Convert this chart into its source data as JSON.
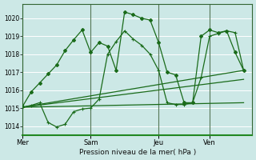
{
  "background_color": "#cce8e6",
  "grid_color": "#b8d8d6",
  "line_color": "#1a6b1a",
  "marker_color": "#1a6b1a",
  "xlabel": "Pression niveau de la mer( hPa )",
  "ylim": [
    1013.5,
    1020.8
  ],
  "yticks": [
    1014,
    1015,
    1016,
    1017,
    1018,
    1019,
    1020
  ],
  "day_labels": [
    "Mer",
    "Sam",
    "Jeu",
    "Ven"
  ],
  "day_positions": [
    0,
    8,
    16,
    22
  ],
  "xlim": [
    0,
    27
  ],
  "series1_x": [
    0,
    1,
    2,
    3,
    4,
    5,
    6,
    7,
    8,
    9,
    10,
    11,
    12,
    13,
    14,
    15,
    16,
    17,
    18,
    19,
    20,
    21,
    22,
    23,
    24,
    25,
    26
  ],
  "series1_y": [
    1015.1,
    1015.9,
    1016.4,
    1016.9,
    1017.4,
    1018.2,
    1018.8,
    1019.35,
    1018.1,
    1018.65,
    1018.45,
    1017.1,
    1020.35,
    1020.2,
    1020.0,
    1019.9,
    1018.65,
    1017.0,
    1016.85,
    1015.3,
    1015.3,
    1019.0,
    1019.35,
    1019.2,
    1019.3,
    1018.1,
    1017.1
  ],
  "series2_x": [
    0,
    1,
    2,
    3,
    4,
    5,
    6,
    7,
    8,
    9,
    10,
    11,
    12,
    13,
    14,
    15,
    16,
    17,
    18,
    19,
    20,
    21,
    22,
    23,
    24,
    25,
    26
  ],
  "series2_y": [
    1015.05,
    1015.15,
    1015.3,
    1014.2,
    1013.95,
    1014.1,
    1014.8,
    1014.95,
    1015.0,
    1015.5,
    1018.0,
    1018.7,
    1019.3,
    1018.85,
    1018.5,
    1018.0,
    1017.1,
    1015.3,
    1015.2,
    1015.2,
    1015.3,
    1016.7,
    1019.0,
    1019.15,
    1019.3,
    1019.2,
    1017.1
  ],
  "trend1_x": [
    0,
    26
  ],
  "trend1_y": [
    1015.05,
    1017.1
  ],
  "trend2_x": [
    0,
    26
  ],
  "trend2_y": [
    1015.05,
    1016.6
  ],
  "trend3_x": [
    0,
    26
  ],
  "trend3_y": [
    1015.05,
    1015.3
  ]
}
